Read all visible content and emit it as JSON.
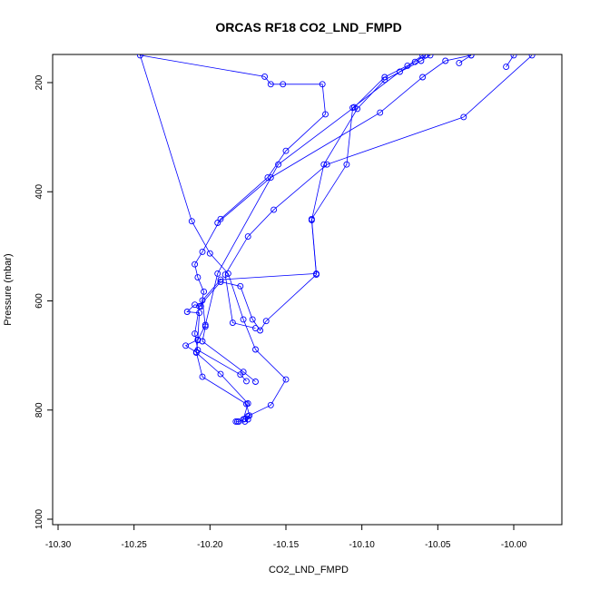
{
  "chart_data": {
    "type": "line",
    "title": "ORCAS RF18 CO2_LND_FMPD",
    "xlabel": "CO2_LND_FMPD",
    "ylabel": "Pressure (mbar)",
    "xlim": [
      -10.3,
      -9.97
    ],
    "ylim": [
      1000,
      150
    ],
    "y_reversed": true,
    "grid": false,
    "x_ticks": [
      -10.3,
      -10.25,
      -10.2,
      -10.15,
      -10.1,
      -10.05,
      -10.0
    ],
    "x_tick_labels": [
      "-10.30",
      "-10.25",
      "-10.20",
      "-10.15",
      "-10.10",
      "-10.05",
      "-10.00"
    ],
    "y_ticks": [
      200,
      400,
      600,
      800,
      1000
    ],
    "y_tick_labels": [
      "200",
      "400",
      "600",
      "800",
      "1000"
    ],
    "series": [
      {
        "color": "#0000ff",
        "marker": "open-circle",
        "points": [
          [
            -10.183,
            821
          ],
          [
            -10.182,
            821
          ],
          [
            -10.181,
            821
          ],
          [
            -10.177,
            816
          ],
          [
            -10.175,
            811
          ],
          [
            -10.16,
            791
          ],
          [
            -10.15,
            744
          ],
          [
            -10.17,
            689
          ],
          [
            -10.178,
            634
          ],
          [
            -10.188,
            550
          ],
          [
            -10.2,
            513
          ],
          [
            -10.212,
            454
          ],
          [
            -10.246,
            150
          ],
          [
            -10.164,
            189
          ],
          [
            -10.16,
            203
          ],
          [
            -10.152,
            203
          ],
          [
            -10.126,
            203
          ],
          [
            -10.124,
            258
          ],
          [
            -10.15,
            325
          ],
          [
            -10.162,
            374
          ],
          [
            -10.193,
            450
          ],
          [
            -10.205,
            510
          ],
          [
            -10.21,
            533
          ],
          [
            -10.208,
            557
          ],
          [
            -10.204,
            583
          ],
          [
            -10.206,
            610
          ],
          [
            -10.21,
            607
          ],
          [
            -10.215,
            620
          ],
          [
            -10.207,
            622
          ],
          [
            -10.208,
            671
          ],
          [
            -10.216,
            682
          ],
          [
            -10.209,
            694
          ],
          [
            -10.205,
            739
          ],
          [
            -10.176,
            789
          ],
          [
            -10.174,
            810
          ],
          [
            -10.175,
            817
          ],
          [
            -10.177,
            821
          ]
        ]
      },
      {
        "color": "#0000ff",
        "marker": "open-circle",
        "points": [
          [
            -10.178,
            817
          ],
          [
            -10.175,
            788
          ],
          [
            -10.193,
            734
          ],
          [
            -10.209,
            695
          ],
          [
            -10.208,
            672
          ],
          [
            -10.203,
            644
          ],
          [
            -10.195,
            550
          ],
          [
            -10.155,
            350
          ],
          [
            -10.105,
            245
          ],
          [
            -10.085,
            190
          ],
          [
            -10.07,
            169
          ],
          [
            -10.06,
            150
          ]
        ]
      },
      {
        "color": "#0000ff",
        "marker": "open-circle",
        "points": [
          [
            -10.17,
            748
          ],
          [
            -10.178,
            730
          ],
          [
            -10.205,
            674
          ],
          [
            -10.203,
            647
          ],
          [
            -10.205,
            599
          ],
          [
            -10.193,
            561
          ],
          [
            -10.13,
            550
          ],
          [
            -10.133,
            450
          ],
          [
            -10.11,
            350
          ],
          [
            -10.106,
            246
          ],
          [
            -10.075,
            180
          ],
          [
            -10.065,
            162
          ],
          [
            -10.058,
            150
          ]
        ]
      },
      {
        "color": "#0000ff",
        "marker": "open-circle",
        "points": [
          [
            -10.176,
            747
          ],
          [
            -10.18,
            735
          ],
          [
            -10.208,
            690
          ],
          [
            -10.21,
            660
          ],
          [
            -10.207,
            610
          ],
          [
            -10.193,
            565
          ],
          [
            -10.18,
            573
          ],
          [
            -10.172,
            634
          ],
          [
            -10.167,
            654
          ],
          [
            -10.163,
            637
          ],
          [
            -10.13,
            552
          ],
          [
            -10.133,
            452
          ],
          [
            -10.125,
            350
          ],
          [
            -10.103,
            248
          ],
          [
            -10.085,
            195
          ],
          [
            -10.061,
            160
          ],
          [
            -10.055,
            150
          ]
        ]
      },
      {
        "color": "#0000ff",
        "marker": "open-circle",
        "points": [
          [
            -10.195,
            457
          ],
          [
            -10.16,
            374
          ],
          [
            -10.088,
            255
          ],
          [
            -10.06,
            190
          ],
          [
            -10.045,
            160
          ],
          [
            -10.028,
            150
          ]
        ]
      },
      {
        "color": "#0000ff",
        "marker": "open-circle",
        "points": [
          [
            -10.17,
            650
          ],
          [
            -10.185,
            640
          ],
          [
            -10.19,
            552
          ],
          [
            -10.175,
            482
          ],
          [
            -10.158,
            433
          ],
          [
            -10.123,
            350
          ],
          [
            -10.033,
            263
          ],
          [
            -9.988,
            150
          ]
        ]
      },
      {
        "color": "#0000ff",
        "marker": "open-circle",
        "points": [
          [
            -10.036,
            164
          ],
          [
            -10.028,
            150
          ]
        ]
      },
      {
        "color": "#0000ff",
        "marker": "open-circle",
        "points": [
          [
            -10.005,
            171
          ],
          [
            -10.0,
            150
          ]
        ]
      }
    ]
  }
}
